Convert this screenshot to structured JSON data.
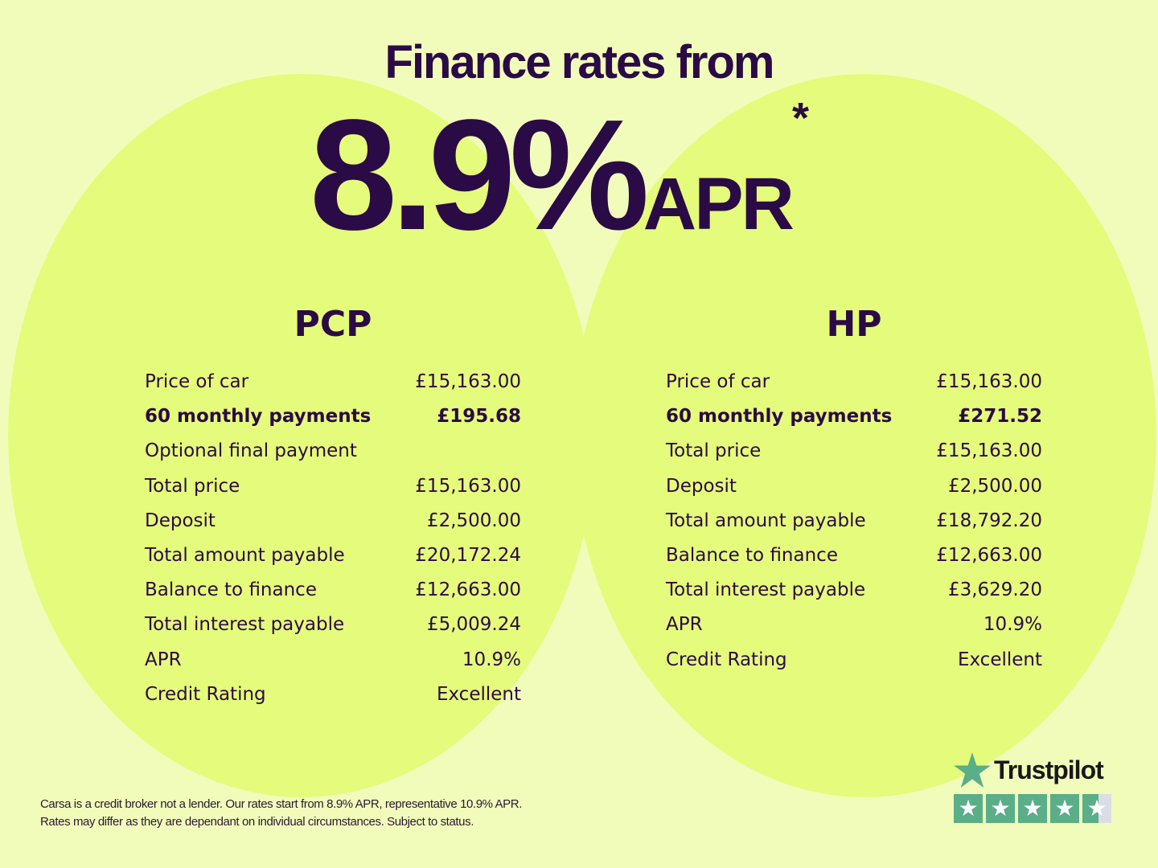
{
  "header": {
    "title": "Finance rates from",
    "rate": "8.9%",
    "rate_suffix": "APR",
    "asterisk": "*"
  },
  "pcp": {
    "heading": "PCP",
    "rows": [
      {
        "label": "Price of car",
        "value": "£15,163.00"
      },
      {
        "label": "60 monthly payments",
        "value": "£195.68",
        "bold": true
      },
      {
        "label": "Optional final payment",
        "value": ""
      },
      {
        "label": "Total price",
        "value": "£15,163.00"
      },
      {
        "label": "Deposit",
        "value": "£2,500.00"
      },
      {
        "label": "Total amount payable",
        "value": "£20,172.24"
      },
      {
        "label": "Balance to finance",
        "value": "£12,663.00"
      },
      {
        "label": "Total interest payable",
        "value": "£5,009.24"
      },
      {
        "label": "APR",
        "value": "10.9%"
      },
      {
        "label": "Credit Rating",
        "value": "Excellent"
      }
    ]
  },
  "hp": {
    "heading": "HP",
    "rows": [
      {
        "label": "Price of car",
        "value": "£15,163.00"
      },
      {
        "label": "60 monthly payments",
        "value": "£271.52",
        "bold": true
      },
      {
        "label": "Total price",
        "value": "£15,163.00"
      },
      {
        "label": "Deposit",
        "value": "£2,500.00"
      },
      {
        "label": "Total amount payable",
        "value": "£18,792.20"
      },
      {
        "label": "Balance to finance",
        "value": "£12,663.00"
      },
      {
        "label": "Total interest payable",
        "value": "£3,629.20"
      },
      {
        "label": "APR",
        "value": "10.9%"
      },
      {
        "label": "Credit Rating",
        "value": "Excellent"
      }
    ]
  },
  "disclaimer": {
    "line1": "Carsa is a credit broker not a lender. Our rates start from 8.9% APR, representative 10.9% APR.",
    "line2": "Rates may differ as they are dependant on individual circumstances. Subject to status."
  },
  "trustpilot": {
    "label": "Trustpilot",
    "rating_stars": 4.5,
    "icon": "star-icon",
    "color": "#5aae88"
  },
  "colors": {
    "background": "#f1fcbb",
    "circle": "#e5fb7b",
    "text": "#2b0b45"
  }
}
